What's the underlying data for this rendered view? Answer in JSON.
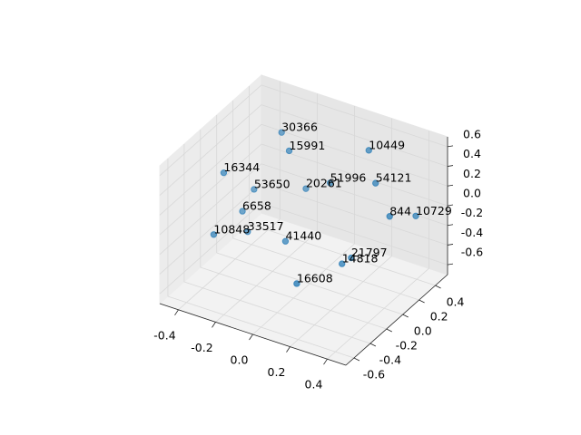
{
  "chart_data": {
    "type": "scatter3d",
    "x": [
      -0.23,
      -0.15,
      0.16,
      -0.34,
      -0.33,
      -0.13,
      0.0,
      0.24,
      -0.34,
      0.32,
      0.36,
      -0.35,
      -0.29,
      -0.1,
      0.17,
      0.16,
      0.07
    ],
    "y": [
      0.18,
      0.09,
      0.36,
      -0.28,
      0.07,
      0.25,
      0.25,
      0.26,
      -0.05,
      0.25,
      0.48,
      -0.38,
      -0.1,
      -0.07,
      0.12,
      0.03,
      -0.32
    ],
    "z": [
      0.56,
      0.49,
      0.49,
      0.42,
      0.0,
      0.0,
      0.14,
      0.28,
      -0.14,
      0.0,
      -0.14,
      -0.14,
      -0.28,
      -0.28,
      -0.42,
      -0.42,
      -0.42
    ],
    "point_labels": [
      30366,
      15991,
      10449,
      16344,
      53650,
      20261,
      51996,
      54121,
      6658,
      844,
      10729,
      10848,
      33517,
      41440,
      21797,
      14818,
      16608
    ],
    "color": "#1f77b4",
    "xlim": [
      -0.5,
      0.5
    ],
    "ylim": [
      -0.7,
      0.55
    ],
    "zlim": [
      -0.7,
      0.7
    ],
    "xticks": [
      -0.4,
      -0.2,
      {
        "value": 0,
        "label": "0.0"
      },
      0.2,
      0.4
    ],
    "yticks": [
      -0.6,
      -0.4,
      -0.2,
      {
        "value": 0,
        "label": "0.0"
      },
      0.2,
      0.4
    ],
    "zticks": [
      -0.6,
      -0.4,
      -0.2,
      {
        "value": 0,
        "label": "0.0"
      },
      0.2,
      0.4,
      0.6
    ],
    "grid": true
  }
}
